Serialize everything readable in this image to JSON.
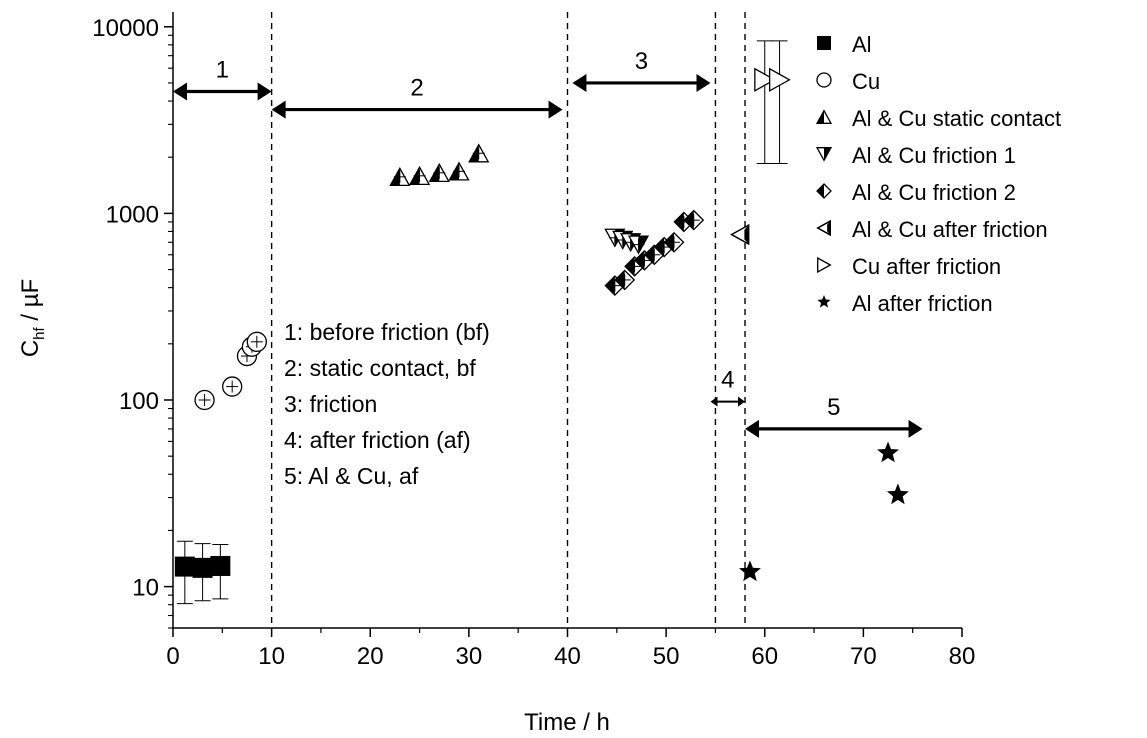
{
  "chart_data": {
    "type": "scatter",
    "xlabel": "Time / h",
    "ylabel_main": "C",
    "ylabel_sub": "hf",
    "ylabel_unit": " / µF",
    "x_range": [
      0,
      80
    ],
    "y_range": [
      6,
      12000
    ],
    "y_scale": "log",
    "grid": false,
    "x_ticks": [
      0,
      10,
      20,
      30,
      40,
      50,
      60,
      70,
      80
    ],
    "y_ticks": [
      {
        "value": 10,
        "label": "10"
      },
      {
        "value": 100,
        "label": "100"
      },
      {
        "value": 1000,
        "label": "1000"
      },
      {
        "value": 10000,
        "label": "10000"
      }
    ],
    "legend_position": "top-right",
    "series": [
      {
        "name": "Al",
        "marker": "square",
        "points": [
          [
            1.2,
            12.8
          ],
          [
            3.0,
            12.6
          ],
          [
            4.8,
            12.9
          ]
        ],
        "error": [
          [
            8.1,
            17.5
          ],
          [
            8.4,
            17.0
          ],
          [
            8.6,
            16.8
          ]
        ]
      },
      {
        "name": "Cu",
        "marker": "circle",
        "points": [
          [
            3.2,
            100
          ],
          [
            6.0,
            118
          ],
          [
            7.5,
            172
          ],
          [
            8.0,
            193
          ],
          [
            8.5,
            205
          ]
        ]
      },
      {
        "name": "Al & Cu static contact",
        "marker": "triangle-up",
        "points": [
          [
            23,
            1570
          ],
          [
            25,
            1590
          ],
          [
            27,
            1650
          ],
          [
            29,
            1680
          ],
          [
            31,
            2100
          ]
        ]
      },
      {
        "name": "Al & Cu friction 1",
        "marker": "triangle-down",
        "points": [
          [
            44.8,
            740
          ],
          [
            45.6,
            720
          ],
          [
            46.4,
            700
          ],
          [
            47.2,
            680
          ]
        ]
      },
      {
        "name": "Al & Cu friction 2",
        "marker": "diamond",
        "points": [
          [
            44.8,
            410
          ],
          [
            45.8,
            440
          ],
          [
            46.8,
            520
          ],
          [
            47.8,
            560
          ],
          [
            48.8,
            600
          ],
          [
            49.8,
            660
          ],
          [
            50.8,
            700
          ],
          [
            51.8,
            900
          ],
          [
            52.8,
            920
          ]
        ]
      },
      {
        "name": "Al & Cu after friction",
        "marker": "triangle-left",
        "points": [
          [
            57.5,
            770
          ]
        ]
      },
      {
        "name": "Cu after friction",
        "marker": "triangle-right",
        "points": [
          [
            60.0,
            5200
          ],
          [
            61.5,
            5200
          ]
        ],
        "error": [
          [
            1850,
            8400
          ],
          [
            1850,
            8400
          ]
        ]
      },
      {
        "name": "Al after friction",
        "marker": "star",
        "points": [
          [
            58.5,
            12.0
          ],
          [
            72.5,
            52
          ],
          [
            73.5,
            31
          ]
        ]
      }
    ],
    "vlines": [
      10,
      40,
      55,
      58
    ],
    "regions": [
      {
        "label": "1",
        "x_from": 0,
        "x_to": 10,
        "arrow_y": 4500
      },
      {
        "label": "2",
        "x_from": 10,
        "x_to": 39.5,
        "arrow_y": 3600
      },
      {
        "label": "3",
        "x_from": 40.5,
        "x_to": 54.5,
        "arrow_y": 5000
      },
      {
        "label": "4",
        "x_from": 54.5,
        "x_to": 58,
        "arrow_y": 98
      },
      {
        "label": "5",
        "x_from": 58,
        "x_to": 76,
        "arrow_y": 70
      }
    ],
    "annotations": [
      "1: before friction (bf)",
      "2: static contact, bf",
      "3: friction",
      "4: after friction (af)",
      "5: Al & Cu, af"
    ]
  }
}
